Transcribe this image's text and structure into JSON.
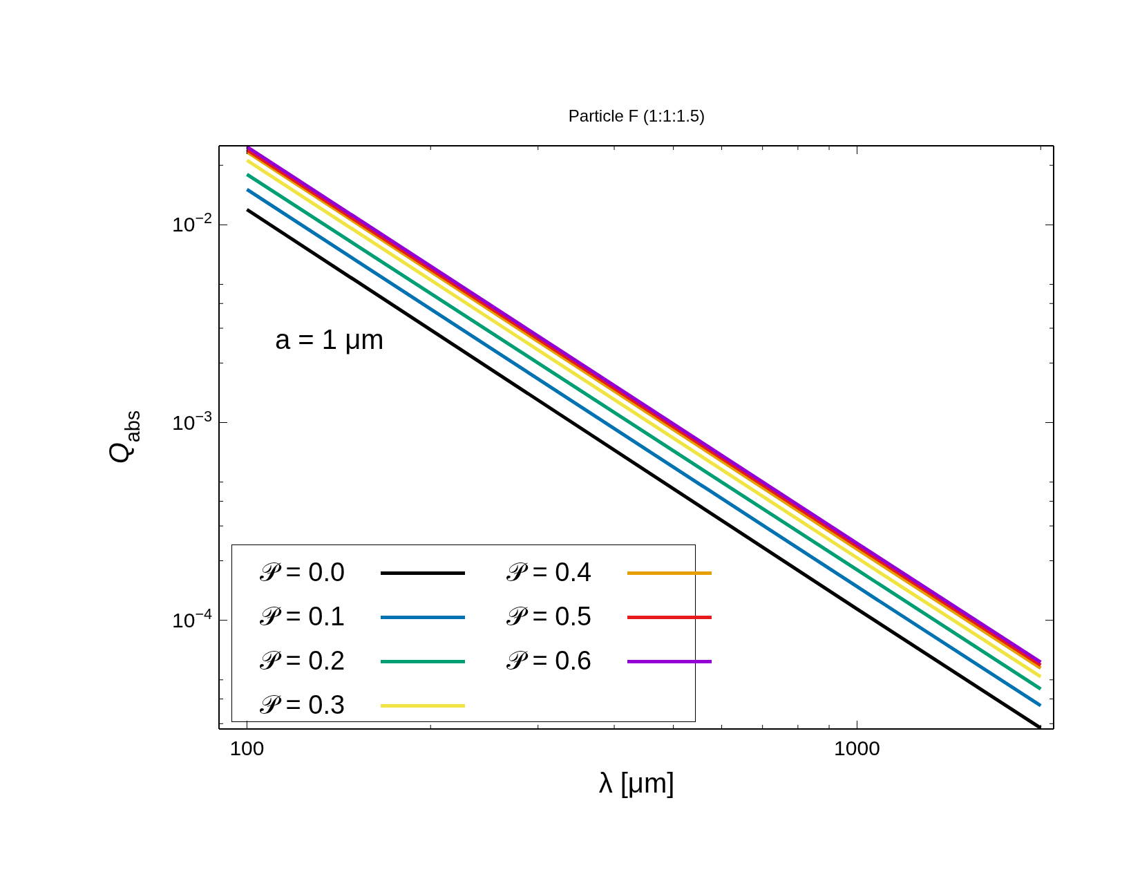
{
  "chart_data": {
    "type": "line",
    "title": "Particle F (1:1:1.5)",
    "xlabel": "λ [μm]",
    "ylabel": "Q$_{abs}$",
    "annotations": [
      "a = 1 μm"
    ],
    "log": "xy",
    "legend": "bottom left",
    "marker": "none",
    "line_style": "solid",
    "x": [
      100,
      1000,
      2000
    ],
    "xlim": [
      90,
      2100
    ],
    "xticks": [
      100,
      {
        "value": 200,
        "label": null
      },
      {
        "value": 300,
        "label": null
      },
      {
        "value": 400,
        "label": null
      },
      {
        "value": 500,
        "label": null
      },
      {
        "value": 600,
        "label": null
      },
      {
        "value": 700,
        "label": null
      },
      {
        "value": 800,
        "label": null
      },
      {
        "value": 900,
        "label": null
      },
      1000,
      {
        "value": 2000,
        "label": null
      }
    ],
    "ylim": [
      2.82e-05,
      0.0251
    ],
    "yticks": [
      {
        "value": 3e-05,
        "label": null
      },
      {
        "value": 4e-05,
        "label": null
      },
      {
        "value": 5e-05,
        "label": null
      },
      {
        "value": 0.0001,
        "label": "10$^{−4}$"
      },
      {
        "value": 0.0002,
        "label": null
      },
      {
        "value": 0.0003,
        "label": null
      },
      {
        "value": 0.0004,
        "label": null
      },
      {
        "value": 0.0005,
        "label": null
      },
      {
        "value": 0.001,
        "label": "10$^{−3}$"
      },
      {
        "value": 0.002,
        "label": null
      },
      {
        "value": 0.003,
        "label": null
      },
      {
        "value": 0.004,
        "label": null
      },
      {
        "value": 0.005,
        "label": null
      },
      {
        "value": 0.01,
        "label": "10$^{−2}$"
      },
      {
        "value": 0.02,
        "label": null
      }
    ],
    "series": [
      {
        "name": "𝒫 = 0.0",
        "color": "#000000",
        "values": [
          0.01195,
          0.000114,
          2.85e-05
        ]
      },
      {
        "name": "𝒫 = 0.1",
        "color": "#0072b2",
        "values": [
          0.0151,
          0.000148,
          3.7e-05
        ]
      },
      {
        "name": "𝒫 = 0.2",
        "color": "#009e73",
        "values": [
          0.018,
          0.00018,
          4.49e-05
        ]
      },
      {
        "name": "𝒫 = 0.3",
        "color": "#f0e442",
        "values": [
          0.0212,
          0.000207,
          5.18e-05
        ]
      },
      {
        "name": "𝒫 = 0.4",
        "color": "#e69f00",
        "values": [
          0.0234,
          0.000229,
          5.73e-05
        ]
      },
      {
        "name": "𝒫 = 0.5",
        "color": "#e41a1c",
        "values": [
          0.024,
          0.000237,
          5.93e-05
        ]
      },
      {
        "name": "𝒫 = 0.6",
        "color": "#9400d3",
        "values": [
          0.0248,
          0.000245,
          6.14e-05
        ]
      }
    ]
  }
}
